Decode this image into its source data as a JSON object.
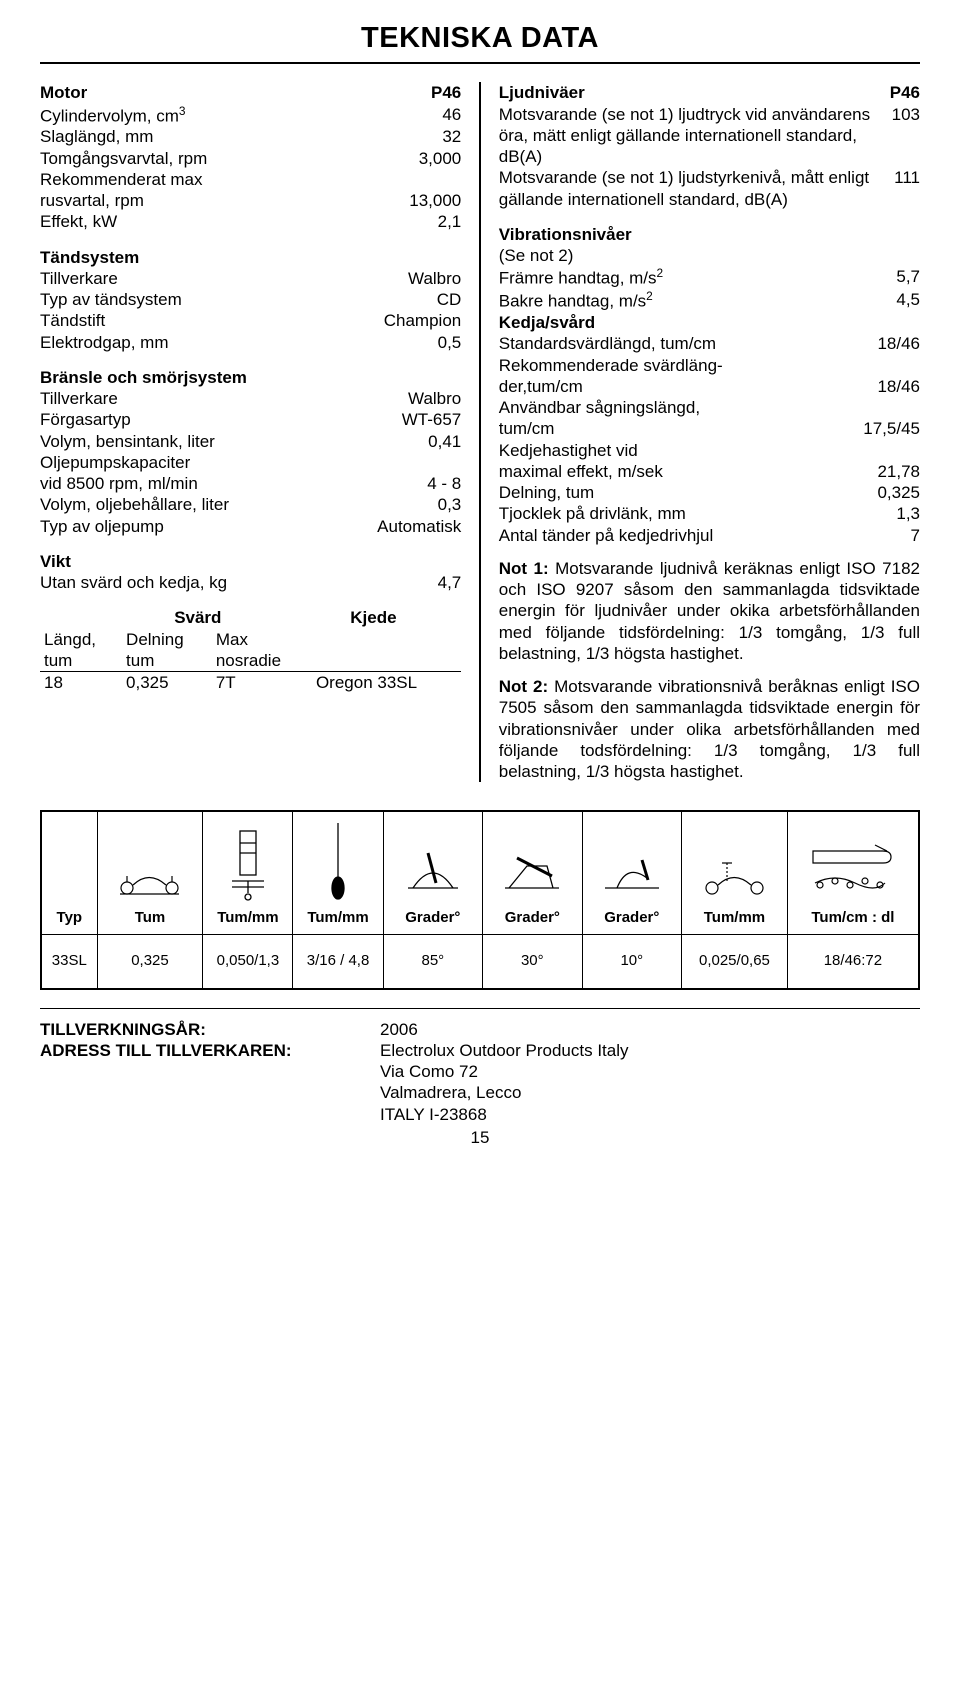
{
  "title": "TEKNISKA DATA",
  "left": {
    "motor": {
      "head": "Motor",
      "val": "P46",
      "rows": [
        {
          "label": "Cylindervolym, cm",
          "sup": "3",
          "val": "46"
        },
        {
          "label": "Slaglängd, mm",
          "val": "32"
        },
        {
          "label": "Tomgångsvarvtal, rpm",
          "val": "3,000"
        },
        {
          "label": "Rekommenderat max",
          "val": ""
        },
        {
          "label": "rusvartal, rpm",
          "val": "13,000"
        },
        {
          "label": "Effekt, kW",
          "val": "2,1"
        }
      ]
    },
    "ignition": {
      "head": "Tändsystem",
      "rows": [
        {
          "label": "Tillverkare",
          "val": "Walbro"
        },
        {
          "label": "Typ av tändsystem",
          "val": "CD"
        },
        {
          "label": "Tändstift",
          "val": "Champion"
        },
        {
          "label": "Elektrodgap, mm",
          "val": "0,5"
        }
      ]
    },
    "fuel": {
      "head": "Bränsle och smörjsystem",
      "rows": [
        {
          "label": "Tillverkare",
          "val": "Walbro"
        },
        {
          "label": "Förgasartyp",
          "val": "WT-657"
        },
        {
          "label": "Volym, bensintank, liter",
          "val": "0,41"
        },
        {
          "label": "Oljepumpskapaciter",
          "val": ""
        },
        {
          "label": "vid 8500 rpm, ml/min",
          "val": "4 - 8"
        },
        {
          "label": "Volym, oljebehållare, liter",
          "val": "0,3"
        },
        {
          "label": "Typ av oljepump",
          "val": "Automatisk"
        }
      ]
    },
    "weight": {
      "head": "Vikt",
      "rows": [
        {
          "label": "Utan svärd och kedja, kg",
          "val": "4,7"
        }
      ]
    },
    "sword": {
      "head1": "Svärd",
      "head2": "Kjede",
      "sub": [
        "Längd,",
        "Delning",
        "Max",
        ""
      ],
      "sub2": [
        "tum",
        "tum",
        "nosradie",
        ""
      ],
      "row": [
        "18",
        "0,325",
        "7T",
        "Oregon 33SL"
      ]
    }
  },
  "right": {
    "sound": {
      "head": "Ljudniväer",
      "val": "P46",
      "rows": [
        {
          "label": "Motsvarande (se not 1) ljudtryck vid användarens öra, mätt enligt gällande internationell standard, dB(A)",
          "val": "103"
        },
        {
          "label": "Motsvarande (se not 1) ljudstyrkenivå, mått enligt gällande internationell standard, dB(A)",
          "val": "111"
        }
      ]
    },
    "vib": {
      "head": "Vibrationsnivåer",
      "sub": "(Se not 2)",
      "rows": [
        {
          "label": "Främre handtag, m/s",
          "sup": "2",
          "val": "5,7"
        },
        {
          "label": "Bakre handtag, m/s",
          "sup": "2",
          "val": "4,5"
        }
      ]
    },
    "chain": {
      "head": "Kedja/svård",
      "rows": [
        {
          "label": "Standardsvärdlängd, tum/cm",
          "val": "18/46"
        },
        {
          "label": "Rekommenderade svärdläng-",
          "val": ""
        },
        {
          "label": "der,tum/cm",
          "val": "18/46"
        },
        {
          "label": "Användbar sågningslängd,",
          "val": ""
        },
        {
          "label": "tum/cm",
          "val": "17,5/45"
        },
        {
          "label": "Kedjehastighet vid",
          "val": ""
        },
        {
          "label": "maximal effekt, m/sek",
          "val": "21,78"
        },
        {
          "label": "Delning, tum",
          "val": "0,325"
        },
        {
          "label": "Tjocklek på drivlänk, mm",
          "val": "1,3"
        },
        {
          "label": "Antal tänder på kedjedrivhjul",
          "val": "7"
        }
      ]
    },
    "note1": {
      "bold": "Not 1:",
      "text": "Motsvarande ljudnivå keräknas enligt ISO 7182 och ISO 9207 såsom den sammanlagda tidsviktade energin för ljudnivåer under okika arbetsförhållanden med följande tidsfördelning: 1/3 tomgång, 1/3 full belastning, 1/3 högsta hastighet."
    },
    "note2": {
      "bold": "Not 2:",
      "text": "Motsvarande vibrationsnivå beråknas enligt ISO 7505 såsom den sammanlagda tidsviktade energin för vibrationsnivåer under olika arbetsförhållanden med följande todsfördelning: 1/3 tomgång, 1/3 full belastning, 1/3 högsta hastighet."
    }
  },
  "diagram": {
    "headers": [
      "Typ",
      "Tum",
      "Tum/mm",
      "Tum/mm",
      "Grader°",
      "Grader°",
      "Grader°",
      "Tum/mm",
      "Tum/cm : dl"
    ],
    "values": [
      "33SL",
      "0,325",
      "0,050/1,3",
      "3/16 / 4,8",
      "85°",
      "30°",
      "10°",
      "0,025/0,65",
      "18/46:72"
    ]
  },
  "footer": {
    "year_label": "TILLVERKNINGSÅR:",
    "year": "2006",
    "addr_label": "ADRESS TILL TILLVERKAREN:",
    "addr": [
      "Electrolux Outdoor Products Italy",
      "Via Como 72",
      "Valmadrera, Lecco",
      "ITALY I-23868"
    ]
  },
  "page": "15"
}
